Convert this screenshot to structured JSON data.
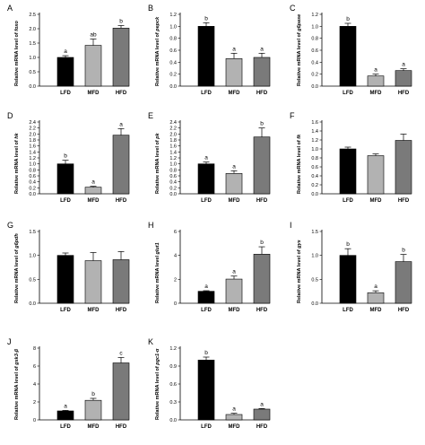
{
  "chart_data": [
    {
      "type": "bar",
      "panel": "A",
      "categories": [
        "LFD",
        "MFD",
        "HFD"
      ],
      "values": [
        1.0,
        1.42,
        2.02
      ],
      "errors": [
        0.06,
        0.22,
        0.09
      ],
      "sig": [
        "a",
        "ab",
        "b"
      ],
      "ylabel": "Relative mRNA level of",
      "gene": "foxo",
      "ylim": [
        0,
        2.5
      ],
      "yticks": [
        "0.0",
        "0.5",
        "1.0",
        "1.5",
        "2.0",
        "2.5"
      ]
    },
    {
      "type": "bar",
      "panel": "B",
      "categories": [
        "LFD",
        "MFD",
        "HFD"
      ],
      "values": [
        1.0,
        0.46,
        0.48
      ],
      "errors": [
        0.06,
        0.09,
        0.07
      ],
      "sig": [
        "b",
        "a",
        "a"
      ],
      "ylabel": "Relative mRNA level of",
      "gene": "pepck",
      "ylim": [
        0,
        1.2
      ],
      "yticks": [
        "0.0",
        "0.2",
        "0.4",
        "0.6",
        "0.8",
        "1.0",
        "1.2"
      ]
    },
    {
      "type": "bar",
      "panel": "C",
      "categories": [
        "LFD",
        "MFD",
        "HFD"
      ],
      "values": [
        1.0,
        0.17,
        0.26
      ],
      "errors": [
        0.05,
        0.03,
        0.03
      ],
      "sig": [
        "b",
        "a",
        "a"
      ],
      "ylabel": "Relative mRNA level of",
      "gene": "g6pase",
      "ylim": [
        0,
        1.2
      ],
      "yticks": [
        "0.0",
        "0.2",
        "0.4",
        "0.6",
        "0.8",
        "1.0",
        "1.2"
      ]
    },
    {
      "type": "bar",
      "panel": "D",
      "categories": [
        "LFD",
        "MFD",
        "HFD"
      ],
      "values": [
        1.0,
        0.22,
        1.96
      ],
      "errors": [
        0.12,
        0.03,
        0.22
      ],
      "sig": [
        "b",
        "a",
        "a"
      ],
      "ylabel": "Relative mRNA level of",
      "gene": "hk",
      "ylim": [
        0,
        2.4
      ],
      "yticks": [
        "0.0",
        "0.2",
        "0.4",
        "0.6",
        "0.8",
        "1.0",
        "1.2",
        "1.4",
        "1.6",
        "1.8",
        "2.0",
        "2.2",
        "2.4"
      ]
    },
    {
      "type": "bar",
      "panel": "E",
      "categories": [
        "LFD",
        "MFD",
        "HFD"
      ],
      "values": [
        1.0,
        0.68,
        1.9
      ],
      "errors": [
        0.06,
        0.09,
        0.3
      ],
      "sig": [
        "a",
        "a",
        "b"
      ],
      "ylabel": "Relative mRNA level of",
      "gene": "pk",
      "ylim": [
        0,
        2.4
      ],
      "yticks": [
        "0.0",
        "0.2",
        "0.4",
        "0.6",
        "0.8",
        "1.0",
        "1.2",
        "1.4",
        "1.6",
        "1.8",
        "2.0",
        "2.2",
        "2.4"
      ]
    },
    {
      "type": "bar",
      "panel": "F",
      "categories": [
        "LFD",
        "MFD",
        "HFD"
      ],
      "values": [
        1.0,
        0.85,
        1.19
      ],
      "errors": [
        0.04,
        0.04,
        0.14
      ],
      "sig": [
        "",
        "",
        ""
      ],
      "ylabel": "Relative mRNA level of",
      "gene": "fk",
      "ylim": [
        0,
        1.6
      ],
      "yticks": [
        "0.0",
        "0.2",
        "0.4",
        "0.6",
        "0.8",
        "1.0",
        "1.2",
        "1.4",
        "1.6"
      ]
    },
    {
      "type": "bar",
      "panel": "G",
      "categories": [
        "LFD",
        "MFD",
        "HFD"
      ],
      "values": [
        1.0,
        0.89,
        0.91
      ],
      "errors": [
        0.05,
        0.17,
        0.17
      ],
      "sig": [
        "",
        "",
        ""
      ],
      "ylabel": "Relative mRNA level of",
      "gene": "g6pdh",
      "ylim": [
        0,
        1.5
      ],
      "yticks": [
        "0.0",
        "0.5",
        "1.0",
        "1.5"
      ]
    },
    {
      "type": "bar",
      "panel": "H",
      "categories": [
        "LFD",
        "MFD",
        "HFD"
      ],
      "values": [
        1.0,
        2.02,
        4.1
      ],
      "errors": [
        0.05,
        0.25,
        0.62
      ],
      "sig": [
        "a",
        "a",
        "b"
      ],
      "ylabel": "Relative mRNA level",
      "gene": "glut1",
      "ylim": [
        0,
        6
      ],
      "yticks": [
        "0",
        "2",
        "4",
        "6"
      ]
    },
    {
      "type": "bar",
      "panel": "I",
      "categories": [
        "LFD",
        "MFD",
        "HFD"
      ],
      "values": [
        1.0,
        0.22,
        0.87
      ],
      "errors": [
        0.14,
        0.04,
        0.15
      ],
      "sig": [
        "b",
        "a",
        "b"
      ],
      "ylabel": "Relative mRNA level of",
      "gene": "gys",
      "ylim": [
        0,
        1.5
      ],
      "yticks": [
        "0.0",
        "0.5",
        "1.0",
        "1.5"
      ]
    },
    {
      "type": "bar",
      "panel": "J",
      "categories": [
        "LFD",
        "MFD",
        "HFD"
      ],
      "values": [
        1.0,
        2.18,
        6.35
      ],
      "errors": [
        0.06,
        0.22,
        0.6
      ],
      "sig": [
        "a",
        "b",
        "c"
      ],
      "ylabel": "Relative mRNA level of",
      "gene": "gsk3-β",
      "ylim": [
        0,
        8
      ],
      "yticks": [
        "0",
        "2",
        "4",
        "6",
        "8"
      ]
    },
    {
      "type": "bar",
      "panel": "K",
      "categories": [
        "LFD",
        "MFD",
        "HFD"
      ],
      "values": [
        1.0,
        0.09,
        0.18
      ],
      "errors": [
        0.05,
        0.02,
        0.01
      ],
      "sig": [
        "b",
        "a",
        "a"
      ],
      "ylabel": "Relative mRNA level of",
      "gene": "pgc1-α",
      "ylim": [
        0,
        1.2
      ],
      "yticks": [
        "0.0",
        "0.3",
        "0.6",
        "0.9",
        "1.2"
      ]
    }
  ],
  "colors": {
    "LFD": "#000000",
    "MFD": "#b2b2b2",
    "HFD": "#7a7a7a"
  }
}
